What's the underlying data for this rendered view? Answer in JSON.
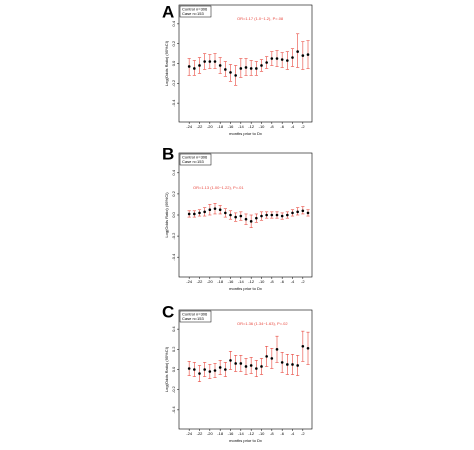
{
  "chart_data": [
    {
      "panel": "A",
      "type": "scatter",
      "style": "point estimates with error bars",
      "xlabel": "months prior to Dx",
      "ylabel": "Log(Odds Ratio) (95%CI)",
      "xlim": [
        -25,
        -1
      ],
      "ylim": [
        -0.55,
        0.55
      ],
      "x_ticks": [
        -24,
        -22,
        -20,
        -18,
        -16,
        -14,
        -12,
        -10,
        -8,
        -6,
        -4,
        -2
      ],
      "y_ticks": [
        -0.4,
        -0.2,
        0.0,
        0.2,
        0.4
      ],
      "legend": [
        "Control n=306",
        "Case n=153"
      ],
      "legend_position": "top-left",
      "annotation": "OR=1.17 (1.0~1.2), P=.08",
      "point_color": "#000000",
      "error_color": "#e8463c",
      "points": [
        {
          "x": -24,
          "y": -0.03,
          "lo": -0.12,
          "hi": 0.05
        },
        {
          "x": -23,
          "y": -0.05,
          "lo": -0.12,
          "hi": 0.03
        },
        {
          "x": -22,
          "y": -0.02,
          "lo": -0.1,
          "hi": 0.06
        },
        {
          "x": -21,
          "y": 0.02,
          "lo": -0.06,
          "hi": 0.1
        },
        {
          "x": -20,
          "y": 0.02,
          "lo": -0.05,
          "hi": 0.09
        },
        {
          "x": -19,
          "y": 0.02,
          "lo": -0.05,
          "hi": 0.1
        },
        {
          "x": -18,
          "y": -0.02,
          "lo": -0.1,
          "hi": 0.06
        },
        {
          "x": -17,
          "y": -0.06,
          "lo": -0.13,
          "hi": 0.02
        },
        {
          "x": -16,
          "y": -0.09,
          "lo": -0.18,
          "hi": -0.01
        },
        {
          "x": -15,
          "y": -0.12,
          "lo": -0.22,
          "hi": -0.02
        },
        {
          "x": -14,
          "y": -0.05,
          "lo": -0.14,
          "hi": 0.05
        },
        {
          "x": -13,
          "y": -0.04,
          "lo": -0.12,
          "hi": 0.05
        },
        {
          "x": -12,
          "y": -0.05,
          "lo": -0.12,
          "hi": 0.03
        },
        {
          "x": -11,
          "y": -0.05,
          "lo": -0.12,
          "hi": 0.02
        },
        {
          "x": -10,
          "y": -0.02,
          "lo": -0.08,
          "hi": 0.04
        },
        {
          "x": -9,
          "y": 0.01,
          "lo": -0.05,
          "hi": 0.07
        },
        {
          "x": -8,
          "y": 0.05,
          "lo": -0.02,
          "hi": 0.12
        },
        {
          "x": -7,
          "y": 0.05,
          "lo": -0.03,
          "hi": 0.13
        },
        {
          "x": -6,
          "y": 0.04,
          "lo": -0.04,
          "hi": 0.11
        },
        {
          "x": -5,
          "y": 0.03,
          "lo": -0.06,
          "hi": 0.12
        },
        {
          "x": -4,
          "y": 0.06,
          "lo": -0.03,
          "hi": 0.15
        },
        {
          "x": -3,
          "y": 0.12,
          "lo": -0.04,
          "hi": 0.3
        },
        {
          "x": -2,
          "y": 0.08,
          "lo": -0.06,
          "hi": 0.22
        },
        {
          "x": -1,
          "y": 0.09,
          "lo": -0.05,
          "hi": 0.23
        }
      ]
    },
    {
      "panel": "B",
      "type": "scatter",
      "style": "point estimates with error bars",
      "xlabel": "months prior to Dx",
      "ylabel": "Log(Odds Ratio) (95%CI)",
      "xlim": [
        -25,
        -1
      ],
      "ylim": [
        -0.55,
        0.55
      ],
      "x_ticks": [
        -24,
        -22,
        -20,
        -18,
        -16,
        -14,
        -12,
        -10,
        -8,
        -6,
        -4,
        -2
      ],
      "y_ticks": [
        -0.4,
        -0.2,
        0.0,
        0.2,
        0.4
      ],
      "legend": [
        "Control n=306",
        "Case n=153"
      ],
      "legend_position": "top-left",
      "annotation": "OR=1.13 (1.00~1.22), P=.01",
      "point_color": "#000000",
      "error_color": "#e8463c",
      "points": [
        {
          "x": -24,
          "y": 0.01,
          "lo": -0.02,
          "hi": 0.04
        },
        {
          "x": -23,
          "y": 0.01,
          "lo": -0.02,
          "hi": 0.04
        },
        {
          "x": -22,
          "y": 0.02,
          "lo": -0.01,
          "hi": 0.05
        },
        {
          "x": -21,
          "y": 0.03,
          "lo": -0.01,
          "hi": 0.07
        },
        {
          "x": -20,
          "y": 0.05,
          "lo": 0.0,
          "hi": 0.1
        },
        {
          "x": -19,
          "y": 0.06,
          "lo": 0.01,
          "hi": 0.11
        },
        {
          "x": -18,
          "y": 0.05,
          "lo": 0.01,
          "hi": 0.09
        },
        {
          "x": -17,
          "y": 0.02,
          "lo": -0.02,
          "hi": 0.06
        },
        {
          "x": -16,
          "y": 0.0,
          "lo": -0.04,
          "hi": 0.04
        },
        {
          "x": -15,
          "y": -0.02,
          "lo": -0.06,
          "hi": 0.02
        },
        {
          "x": -14,
          "y": -0.01,
          "lo": -0.05,
          "hi": 0.03
        },
        {
          "x": -13,
          "y": -0.04,
          "lo": -0.09,
          "hi": 0.01
        },
        {
          "x": -12,
          "y": -0.06,
          "lo": -0.12,
          "hi": 0.0
        },
        {
          "x": -11,
          "y": -0.03,
          "lo": -0.07,
          "hi": 0.01
        },
        {
          "x": -10,
          "y": -0.01,
          "lo": -0.05,
          "hi": 0.03
        },
        {
          "x": -9,
          "y": 0.0,
          "lo": -0.03,
          "hi": 0.03
        },
        {
          "x": -8,
          "y": 0.0,
          "lo": -0.03,
          "hi": 0.03
        },
        {
          "x": -7,
          "y": 0.0,
          "lo": -0.03,
          "hi": 0.03
        },
        {
          "x": -6,
          "y": -0.01,
          "lo": -0.04,
          "hi": 0.02
        },
        {
          "x": -5,
          "y": 0.0,
          "lo": -0.03,
          "hi": 0.03
        },
        {
          "x": -4,
          "y": 0.02,
          "lo": -0.01,
          "hi": 0.05
        },
        {
          "x": -3,
          "y": 0.03,
          "lo": 0.0,
          "hi": 0.07
        },
        {
          "x": -2,
          "y": 0.04,
          "lo": 0.01,
          "hi": 0.08
        },
        {
          "x": -1,
          "y": 0.02,
          "lo": -0.01,
          "hi": 0.05
        }
      ]
    },
    {
      "panel": "C",
      "type": "scatter",
      "style": "point estimates with error bars",
      "xlabel": "months prior to Dx",
      "ylabel": "Log(Odds Ratio) (95%CI)",
      "xlim": [
        -25,
        -1
      ],
      "ylim": [
        -0.55,
        0.55
      ],
      "x_ticks": [
        -24,
        -22,
        -20,
        -18,
        -16,
        -14,
        -12,
        -10,
        -8,
        -6,
        -4,
        -2
      ],
      "y_ticks": [
        -0.4,
        -0.2,
        0.0,
        0.2,
        0.4
      ],
      "legend": [
        "Control n=306",
        "Case n=153"
      ],
      "legend_position": "top-left",
      "annotation": "OR=1.36 (1.34~1.63), P=.02",
      "point_color": "#000000",
      "error_color": "#e8463c",
      "points": [
        {
          "x": -24,
          "y": 0.01,
          "lo": -0.06,
          "hi": 0.08
        },
        {
          "x": -23,
          "y": 0.0,
          "lo": -0.07,
          "hi": 0.07
        },
        {
          "x": -22,
          "y": -0.04,
          "lo": -0.12,
          "hi": 0.04
        },
        {
          "x": -21,
          "y": 0.0,
          "lo": -0.07,
          "hi": 0.07
        },
        {
          "x": -20,
          "y": -0.02,
          "lo": -0.09,
          "hi": 0.05
        },
        {
          "x": -19,
          "y": -0.01,
          "lo": -0.08,
          "hi": 0.06
        },
        {
          "x": -18,
          "y": 0.02,
          "lo": -0.05,
          "hi": 0.09
        },
        {
          "x": -17,
          "y": 0.0,
          "lo": -0.07,
          "hi": 0.07
        },
        {
          "x": -16,
          "y": 0.09,
          "lo": 0.0,
          "hi": 0.18
        },
        {
          "x": -15,
          "y": 0.06,
          "lo": -0.02,
          "hi": 0.14
        },
        {
          "x": -14,
          "y": 0.06,
          "lo": -0.02,
          "hi": 0.14
        },
        {
          "x": -13,
          "y": 0.03,
          "lo": -0.05,
          "hi": 0.11
        },
        {
          "x": -12,
          "y": 0.04,
          "lo": -0.04,
          "hi": 0.12
        },
        {
          "x": -11,
          "y": 0.01,
          "lo": -0.07,
          "hi": 0.09
        },
        {
          "x": -10,
          "y": 0.03,
          "lo": -0.05,
          "hi": 0.11
        },
        {
          "x": -9,
          "y": 0.13,
          "lo": 0.03,
          "hi": 0.23
        },
        {
          "x": -8,
          "y": 0.11,
          "lo": 0.01,
          "hi": 0.21
        },
        {
          "x": -7,
          "y": 0.2,
          "lo": 0.07,
          "hi": 0.33
        },
        {
          "x": -6,
          "y": 0.07,
          "lo": -0.03,
          "hi": 0.17
        },
        {
          "x": -5,
          "y": 0.05,
          "lo": -0.05,
          "hi": 0.15
        },
        {
          "x": -4,
          "y": 0.05,
          "lo": -0.05,
          "hi": 0.15
        },
        {
          "x": -3,
          "y": 0.04,
          "lo": -0.06,
          "hi": 0.14
        },
        {
          "x": -2,
          "y": 0.23,
          "lo": 0.08,
          "hi": 0.38
        },
        {
          "x": -1,
          "y": 0.21,
          "lo": 0.05,
          "hi": 0.37
        }
      ]
    }
  ]
}
